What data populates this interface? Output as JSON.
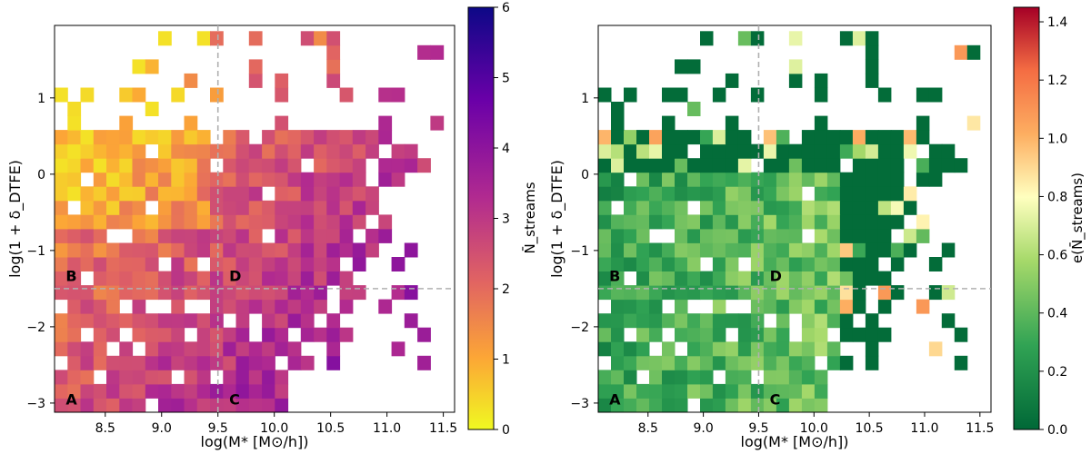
{
  "chart_data": [
    {
      "type": "heatmap",
      "panel": "left",
      "xlabel": "log(M* [M⊙/h])",
      "ylabel": "log(1 + δ_DTFE)",
      "xlim": [
        8.05,
        11.6
      ],
      "ylim": [
        -3.12,
        1.95
      ],
      "xticks": [
        8.5,
        9.0,
        9.5,
        10.0,
        10.5,
        11.0,
        11.5
      ],
      "xtick_labels": [
        "8.5",
        "9.0",
        "9.5",
        "10.0",
        "10.5",
        "11.0",
        "11.5"
      ],
      "yticks": [
        -3,
        -2,
        -1,
        0,
        1
      ],
      "ytick_labels": [
        "−3",
        "−2",
        "−1",
        "0",
        "1"
      ],
      "divider_x": 9.5,
      "divider_y": -1.5,
      "region_labels": [
        {
          "text": "A",
          "x": 8.15,
          "y": -2.95
        },
        {
          "text": "B",
          "x": 8.15,
          "y": -1.33
        },
        {
          "text": "C",
          "x": 9.6,
          "y": -2.95
        },
        {
          "text": "D",
          "x": 9.6,
          "y": -1.33
        }
      ],
      "colorbar": {
        "label": "N̄_streams",
        "min": 0,
        "max": 6,
        "ticks": [
          0,
          1,
          2,
          3,
          4,
          5,
          6
        ],
        "tick_labels": [
          "0",
          "1",
          "2",
          "3",
          "4",
          "5",
          "6"
        ],
        "colormap": "plasma"
      }
    },
    {
      "type": "heatmap",
      "panel": "right",
      "xlabel": "log(M* [M⊙/h])",
      "ylabel": "log(1 + δ_DTFE)",
      "xlim": [
        8.05,
        11.6
      ],
      "ylim": [
        -3.12,
        1.95
      ],
      "xticks": [
        8.5,
        9.0,
        9.5,
        10.0,
        10.5,
        11.0,
        11.5
      ],
      "xtick_labels": [
        "8.5",
        "9.0",
        "9.5",
        "10.0",
        "10.5",
        "11.0",
        "11.5"
      ],
      "yticks": [
        -3,
        -2,
        -1,
        0,
        1
      ],
      "ytick_labels": [
        "−3",
        "−2",
        "−1",
        "0",
        "1"
      ],
      "divider_x": 9.5,
      "divider_y": -1.5,
      "region_labels": [
        {
          "text": "A",
          "x": 8.15,
          "y": -2.95
        },
        {
          "text": "B",
          "x": 8.15,
          "y": -1.33
        },
        {
          "text": "C",
          "x": 9.6,
          "y": -2.95
        },
        {
          "text": "D",
          "x": 9.6,
          "y": -1.33
        }
      ],
      "colorbar": {
        "label": "e(N̄_streams)",
        "min": 0.0,
        "max": 1.45,
        "ticks": [
          0.0,
          0.2,
          0.4,
          0.6,
          0.8,
          1.0,
          1.2,
          1.4
        ],
        "tick_labels": [
          "0.0",
          "0.2",
          "0.4",
          "0.6",
          "0.8",
          "1.0",
          "1.2",
          "1.4"
        ],
        "colormap": "RdYlGn_r"
      }
    }
  ]
}
